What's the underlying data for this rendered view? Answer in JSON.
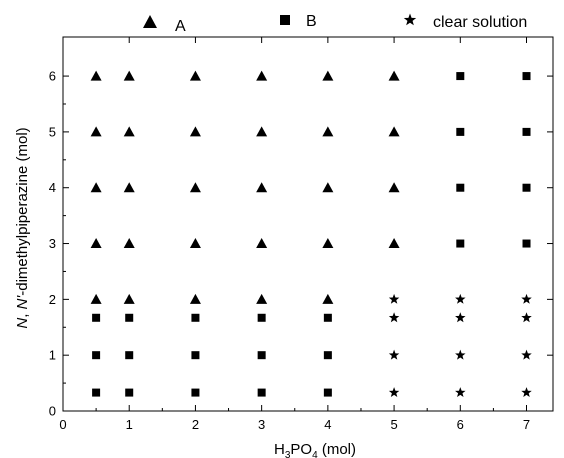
{
  "chart_data": {
    "type": "scatter",
    "xlabel_main": "H",
    "xlabel_sub1": "3",
    "xlabel_mid": "PO",
    "xlabel_sub2": "4",
    "xlabel_tail": " (mol)",
    "ylabel_italic1": "N",
    "ylabel_sep": ", ",
    "ylabel_italic2": "N'",
    "ylabel_rest": "-dimethylpiperazine (mol)",
    "xlim": [
      0,
      7.4
    ],
    "ylim": [
      0,
      6.7
    ],
    "xticks": [
      "0",
      "1",
      "2",
      "3",
      "4",
      "5",
      "6",
      "7"
    ],
    "yticks": [
      "0",
      "1",
      "2",
      "3",
      "4",
      "5",
      "6"
    ],
    "grid": false,
    "legend_position": "top",
    "series": [
      {
        "name": "A",
        "marker": "triangle",
        "points": [
          [
            0.5,
            6
          ],
          [
            1,
            6
          ],
          [
            2,
            6
          ],
          [
            3,
            6
          ],
          [
            4,
            6
          ],
          [
            5,
            6
          ],
          [
            0.5,
            5
          ],
          [
            1,
            5
          ],
          [
            2,
            5
          ],
          [
            3,
            5
          ],
          [
            4,
            5
          ],
          [
            5,
            5
          ],
          [
            0.5,
            4
          ],
          [
            1,
            4
          ],
          [
            2,
            4
          ],
          [
            3,
            4
          ],
          [
            4,
            4
          ],
          [
            5,
            4
          ],
          [
            0.5,
            3
          ],
          [
            1,
            3
          ],
          [
            2,
            3
          ],
          [
            3,
            3
          ],
          [
            4,
            3
          ],
          [
            5,
            3
          ],
          [
            0.5,
            2
          ],
          [
            1,
            2
          ],
          [
            2,
            2
          ],
          [
            3,
            2
          ],
          [
            4,
            2
          ]
        ]
      },
      {
        "name": "B",
        "marker": "square",
        "points": [
          [
            6,
            6
          ],
          [
            7,
            6
          ],
          [
            6,
            5
          ],
          [
            7,
            5
          ],
          [
            6,
            4
          ],
          [
            7,
            4
          ],
          [
            6,
            3
          ],
          [
            7,
            3
          ],
          [
            0.5,
            1.67
          ],
          [
            1,
            1.67
          ],
          [
            2,
            1.67
          ],
          [
            3,
            1.67
          ],
          [
            4,
            1.67
          ],
          [
            0.5,
            1
          ],
          [
            1,
            1
          ],
          [
            2,
            1
          ],
          [
            3,
            1
          ],
          [
            4,
            1
          ],
          [
            0.5,
            0.33
          ],
          [
            1,
            0.33
          ],
          [
            2,
            0.33
          ],
          [
            3,
            0.33
          ],
          [
            4,
            0.33
          ]
        ]
      },
      {
        "name": "clear solution",
        "marker": "star",
        "points": [
          [
            5,
            2
          ],
          [
            6,
            2
          ],
          [
            7,
            2
          ],
          [
            5,
            1.67
          ],
          [
            6,
            1.67
          ],
          [
            7,
            1.67
          ],
          [
            5,
            1
          ],
          [
            6,
            1
          ],
          [
            7,
            1
          ],
          [
            5,
            0.33
          ],
          [
            6,
            0.33
          ],
          [
            7,
            0.33
          ]
        ]
      }
    ]
  }
}
